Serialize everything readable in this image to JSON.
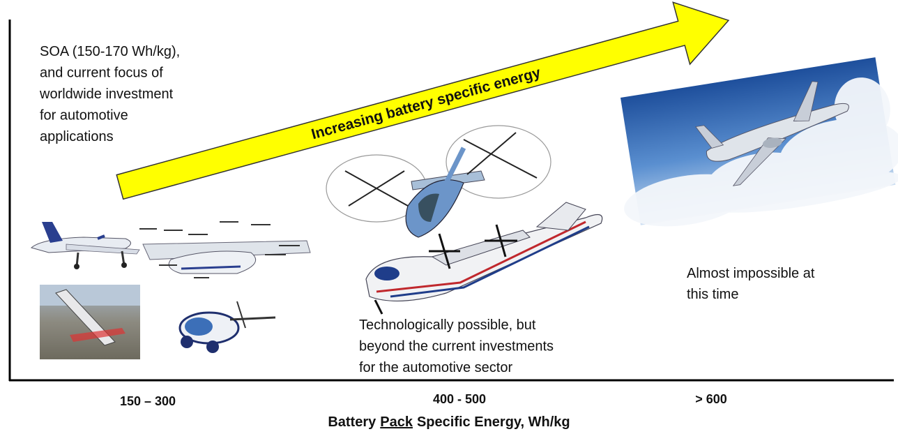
{
  "arrow": {
    "label": "Increasing battery specific energy"
  },
  "notes": [
    {
      "lines": [
        "SOA (150-170 Wh/kg),",
        "and current focus of",
        "worldwide investment",
        "for automotive",
        "applications"
      ]
    },
    {
      "lines": [
        "Technologically possible, but",
        "beyond the current investments",
        "for the automotive sector"
      ]
    },
    {
      "lines": [
        "Almost impossible at",
        "this time"
      ]
    }
  ],
  "x_axis": {
    "ticks": [
      "150 – 300",
      "400 - 500",
      "> 600"
    ],
    "title_parts": [
      "Battery",
      "Pack",
      "Specific Energy, Wh/kg"
    ]
  }
}
